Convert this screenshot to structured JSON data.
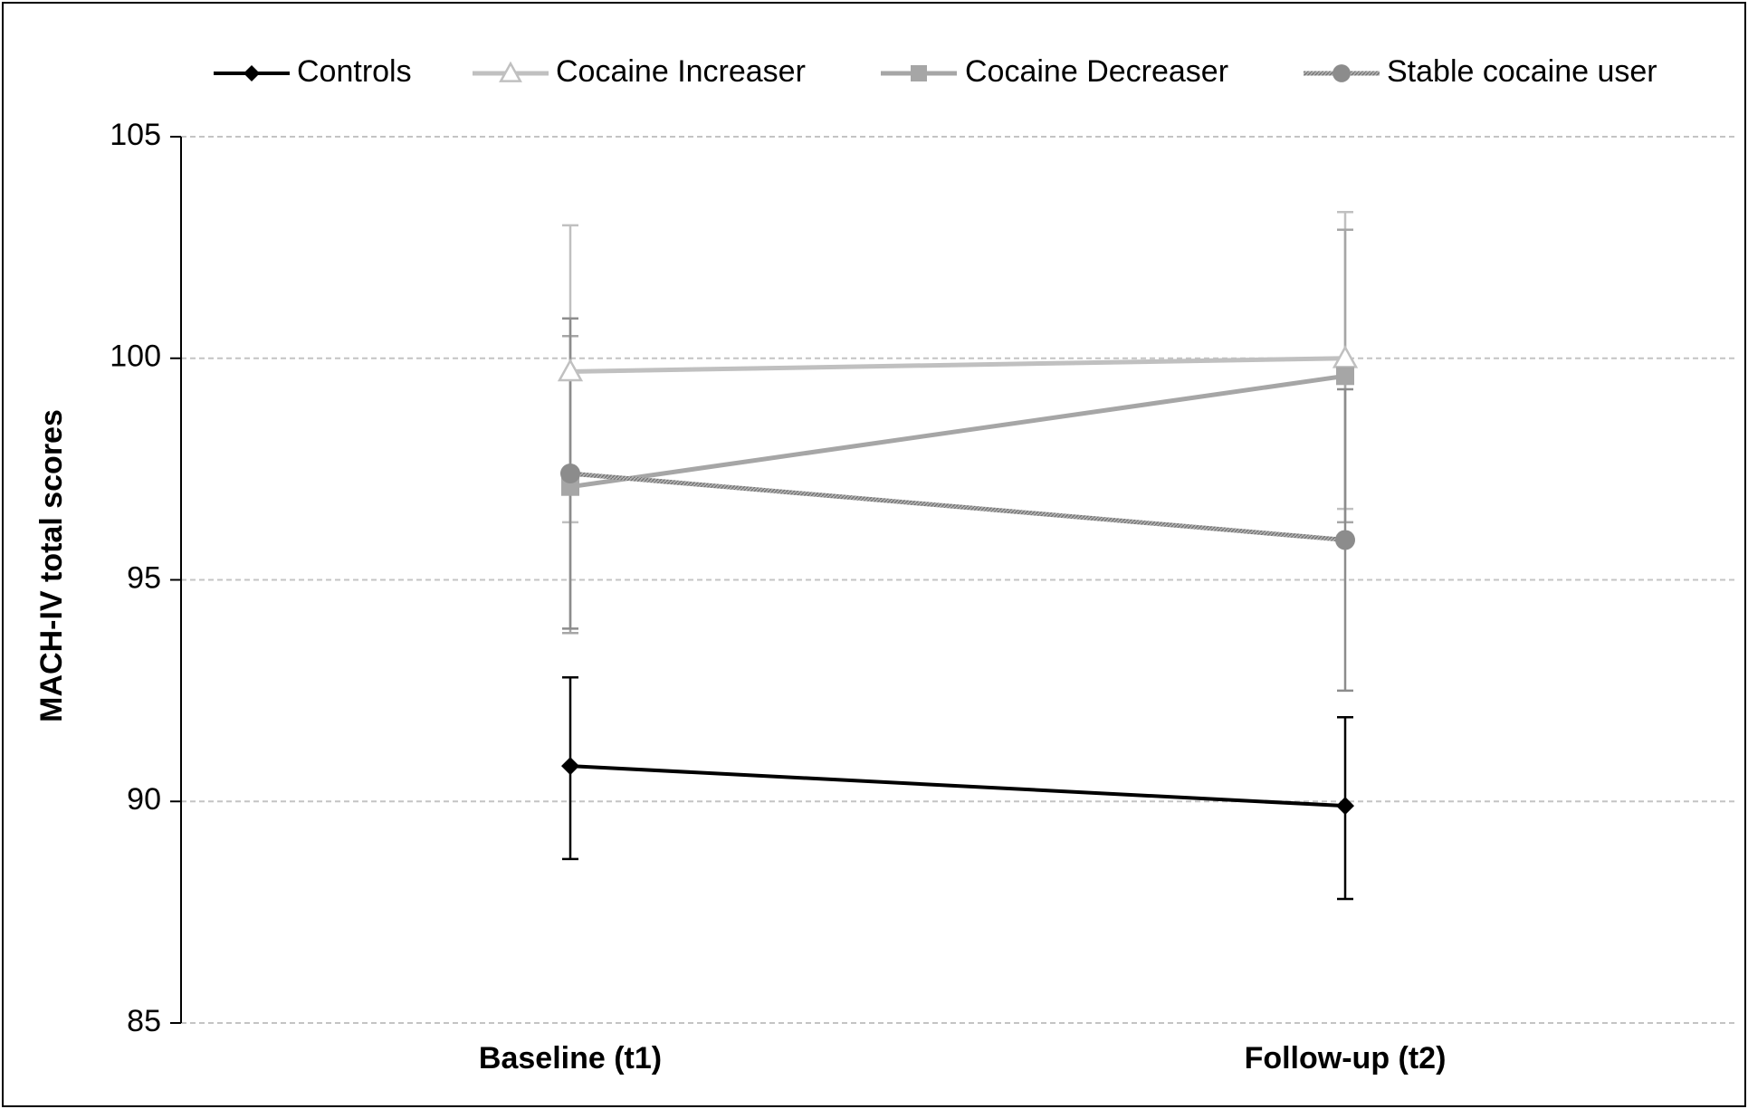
{
  "chart_data": {
    "type": "line",
    "title": "",
    "xlabel": "",
    "ylabel": "MACH-IV total scores",
    "categories": [
      "Baseline (t1)",
      "Follow-up (t2)"
    ],
    "ylim": [
      85,
      105
    ],
    "yticks": [
      85,
      90,
      95,
      100,
      105
    ],
    "grid": true,
    "legend_position": "top",
    "series": [
      {
        "name": "Controls",
        "color": "#000000",
        "marker": "diamond",
        "values": [
          90.8,
          89.9
        ],
        "error_low": [
          88.7,
          87.8
        ],
        "error_high": [
          92.8,
          91.9
        ]
      },
      {
        "name": "Cocaine Increaser",
        "color": "#c0c0c0",
        "marker": "triangle-open",
        "values": [
          99.7,
          100.0
        ],
        "error_low": [
          96.3,
          96.6
        ],
        "error_high": [
          103.0,
          103.3
        ]
      },
      {
        "name": "Cocaine Decreaser",
        "color": "#a6a6a6",
        "marker": "square",
        "values": [
          97.1,
          99.6
        ],
        "error_low": [
          93.8,
          96.3
        ],
        "error_high": [
          100.5,
          102.9
        ]
      },
      {
        "name": "Stable cocaine user",
        "color": "#8c8c8c",
        "marker": "circle",
        "values": [
          97.4,
          95.9
        ],
        "error_low": [
          93.9,
          92.5
        ],
        "error_high": [
          100.9,
          99.3
        ]
      }
    ]
  }
}
